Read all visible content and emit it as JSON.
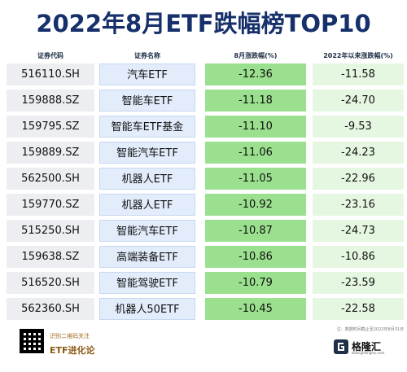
{
  "title": "2022年8月ETF跌幅榜TOP10",
  "headers": {
    "code": "证券代码",
    "name": "证券名称",
    "aug_change": "8月涨跌幅(%)",
    "ytd_change": "2022年以来涨跌幅(%)"
  },
  "rows": [
    {
      "code": "516110.SH",
      "name": "汽车ETF",
      "aug": "-12.36",
      "ytd": "-11.58"
    },
    {
      "code": "159888.SZ",
      "name": "智能车ETF",
      "aug": "-11.18",
      "ytd": "-24.70"
    },
    {
      "code": "159795.SZ",
      "name": "智能车ETF基金",
      "aug": "-11.10",
      "ytd": "-9.53"
    },
    {
      "code": "159889.SZ",
      "name": "智能汽车ETF",
      "aug": "-11.06",
      "ytd": "-24.23"
    },
    {
      "code": "562500.SH",
      "name": "机器人ETF",
      "aug": "-11.05",
      "ytd": "-22.96"
    },
    {
      "code": "159770.SZ",
      "name": "机器人ETF",
      "aug": "-10.92",
      "ytd": "-23.16"
    },
    {
      "code": "515250.SH",
      "name": "智能汽车ETF",
      "aug": "-10.87",
      "ytd": "-24.73"
    },
    {
      "code": "159638.SZ",
      "name": "高端装备ETF",
      "aug": "-10.86",
      "ytd": "-10.86"
    },
    {
      "code": "516520.SH",
      "name": "智能驾驶ETF",
      "aug": "-10.79",
      "ytd": "-23.59"
    },
    {
      "code": "562360.SH",
      "name": "机器人50ETF",
      "aug": "-10.45",
      "ytd": "-22.58"
    }
  ],
  "footer": {
    "note": "注：数据时间截止至2022年8月31日",
    "qr_caption": "识别二维码关注",
    "qr_brand": "ETF进化论",
    "logo_name": "格隆汇",
    "logo_sub": "www.gelonghui.com"
  },
  "colors": {
    "title": "#16306b",
    "aug_bg": "#9ae08e",
    "ytd_bg": "#e6f7e1",
    "name_bg": "#e2ecfa",
    "code_bg": "#eceef2"
  }
}
